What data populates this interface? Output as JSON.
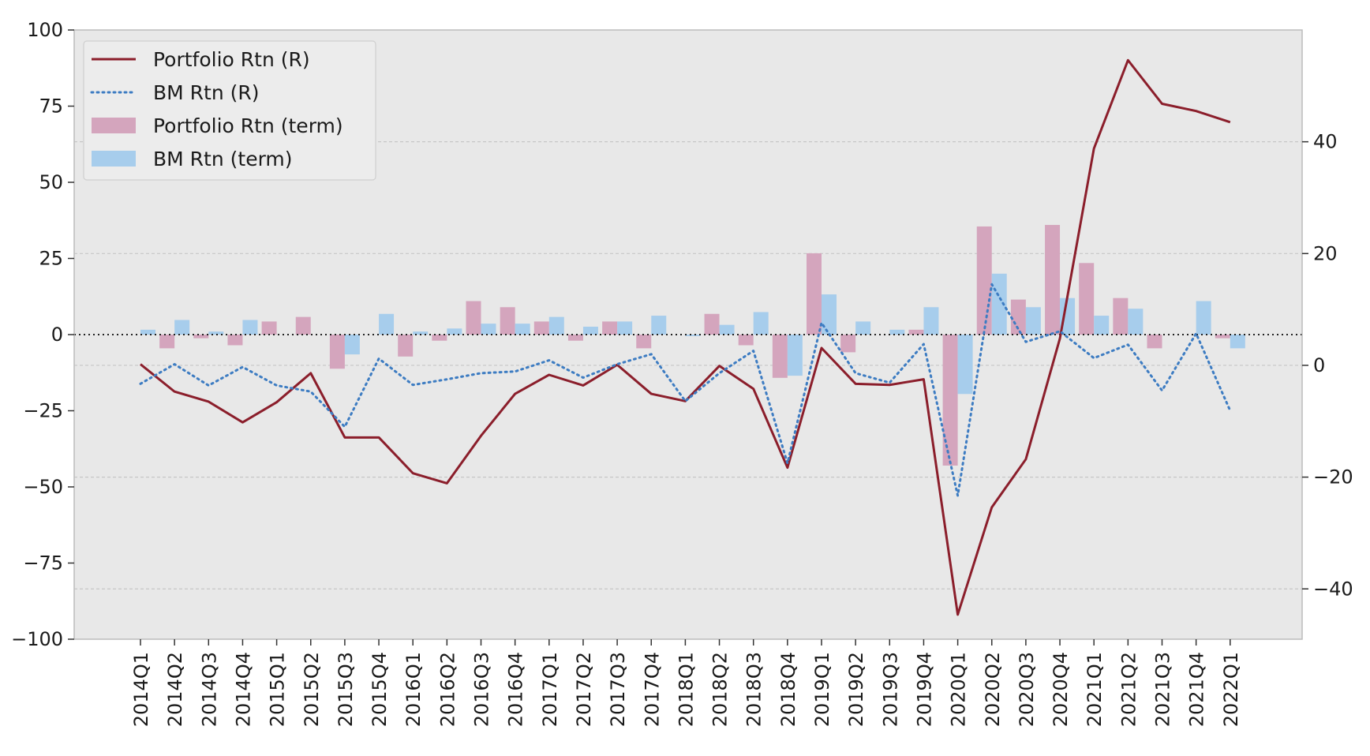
{
  "chart_data": {
    "type": "bar",
    "categories": [
      "2014Q1",
      "2014Q2",
      "2014Q3",
      "2014Q4",
      "2015Q1",
      "2015Q2",
      "2015Q3",
      "2015Q4",
      "2016Q1",
      "2016Q2",
      "2016Q3",
      "2016Q4",
      "2017Q1",
      "2017Q2",
      "2017Q3",
      "2017Q4",
      "2018Q1",
      "2018Q2",
      "2018Q3",
      "2018Q4",
      "2019Q1",
      "2019Q2",
      "2019Q3",
      "2019Q4",
      "2020Q1",
      "2020Q2",
      "2020Q3",
      "2020Q4",
      "2021Q1",
      "2021Q2",
      "2021Q3",
      "2021Q4",
      "2022Q1"
    ],
    "left_axis": {
      "ylim": [
        -100,
        100
      ],
      "ticks": [
        100,
        75,
        50,
        25,
        0,
        -25,
        -50,
        -75,
        -100
      ],
      "tick_labels": [
        "100",
        "75",
        "50",
        "25",
        "0",
        "−25",
        "−50",
        "−75",
        "−100"
      ]
    },
    "right_axis": {
      "ylim": [
        -49,
        60
      ],
      "ticks": [
        40,
        20,
        0,
        -20,
        -40
      ],
      "tick_labels": [
        "40",
        "20",
        "0",
        "−20",
        "−40"
      ]
    },
    "grid": true,
    "zero_line": true,
    "legend_position": "upper-left",
    "series": [
      {
        "name": "Portfolio Rtn (R)",
        "kind": "line",
        "axis": "right",
        "style": "solid",
        "color": "#8b1e2b",
        "values": [
          0.2,
          -4.7,
          -6.5,
          -10.2,
          -6.6,
          -1.4,
          -12.9,
          -12.9,
          -19.3,
          -21.1,
          -12.6,
          -5.1,
          -1.7,
          -3.6,
          0.1,
          -5.1,
          -6.4,
          -0.1,
          -4.2,
          -18.3,
          3.1,
          -3.3,
          -3.5,
          -2.5,
          -44.6,
          -25.4,
          -16.8,
          4.8,
          38.8,
          54.6,
          46.8,
          45.5,
          43.5
        ]
      },
      {
        "name": "BM Rtn (R)",
        "kind": "line",
        "axis": "right",
        "style": "dotted",
        "color": "#3d7cc2",
        "values": [
          -3.3,
          0.2,
          -3.6,
          -0.3,
          -3.6,
          -4.7,
          -11.0,
          1.2,
          -3.5,
          -2.5,
          -1.4,
          -1.1,
          0.9,
          -2.2,
          0.2,
          2.0,
          -6.4,
          -1.4,
          2.6,
          -17.5,
          7.6,
          -1.4,
          -3.1,
          3.8,
          -23.3,
          14.5,
          4.2,
          6.1,
          1.3,
          3.7,
          -4.5,
          5.7,
          -8.1
        ]
      },
      {
        "name": "Portfolio Rtn (term)",
        "kind": "bar",
        "axis": "left",
        "color": "#d4a5bd",
        "values": [
          0.0,
          -4.5,
          -1.2,
          -3.5,
          4.3,
          5.8,
          -11.2,
          0.0,
          -7.2,
          -2.0,
          11.0,
          9.0,
          4.3,
          -2.0,
          4.3,
          -4.5,
          0.0,
          6.8,
          -3.5,
          -14.2,
          26.7,
          -5.8,
          0.0,
          1.6,
          -43.0,
          35.5,
          11.5,
          36.0,
          23.5,
          12.0,
          -4.5,
          0.0,
          -1.2
        ]
      },
      {
        "name": "BM Rtn (term)",
        "kind": "bar",
        "axis": "left",
        "color": "#a7cdec",
        "values": [
          1.6,
          4.8,
          1.0,
          4.8,
          0.0,
          0.0,
          -6.5,
          6.8,
          1.0,
          2.0,
          3.6,
          3.6,
          5.8,
          2.6,
          4.3,
          6.2,
          -0.5,
          3.2,
          7.4,
          -13.5,
          13.2,
          4.3,
          1.6,
          9.0,
          -19.5,
          20.0,
          9.0,
          12.0,
          6.2,
          8.5,
          0.0,
          11.0,
          -4.5
        ]
      }
    ]
  }
}
